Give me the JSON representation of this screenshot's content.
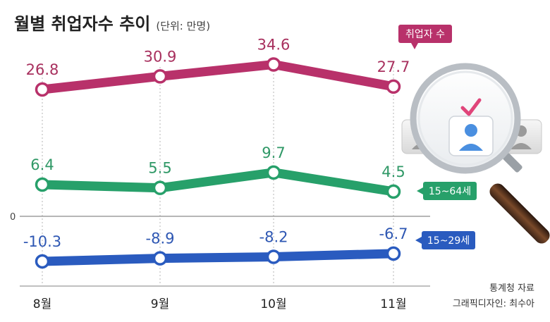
{
  "title": "월별 취업자수 추이",
  "unit": "(단위: 만명)",
  "source": "통계청 자료",
  "credit": "그래픽디자인: 최수아",
  "chart_data": {
    "type": "line",
    "categories": [
      "8월",
      "9월",
      "10월",
      "11월"
    ],
    "series": [
      {
        "name": "취업자 수",
        "values": [
          26.8,
          30.9,
          34.6,
          27.7
        ],
        "color": "#b8316a",
        "label_color": "#a8305e"
      },
      {
        "name": "15~64세",
        "values": [
          6.4,
          5.5,
          9.7,
          4.5
        ],
        "color": "#27a06a",
        "label_color": "#2f9866"
      },
      {
        "name": "15~29세",
        "values": [
          -10.3,
          -8.9,
          -8.2,
          -6.7
        ],
        "color": "#2a5bbf",
        "label_color": "#2e57b3"
      }
    ],
    "value_labels": [
      [
        "26.8",
        "30.9",
        "34.6",
        "27.7"
      ],
      [
        "6.4",
        "5.5",
        "9.7",
        "4.5"
      ],
      [
        "-10.3",
        "-8.9",
        "-8.2",
        "-6.7"
      ]
    ],
    "zero_label": "0"
  },
  "decoration": {
    "description_icons": [
      "magnifier-icon",
      "user-card-icon",
      "checkmark-icon"
    ]
  }
}
